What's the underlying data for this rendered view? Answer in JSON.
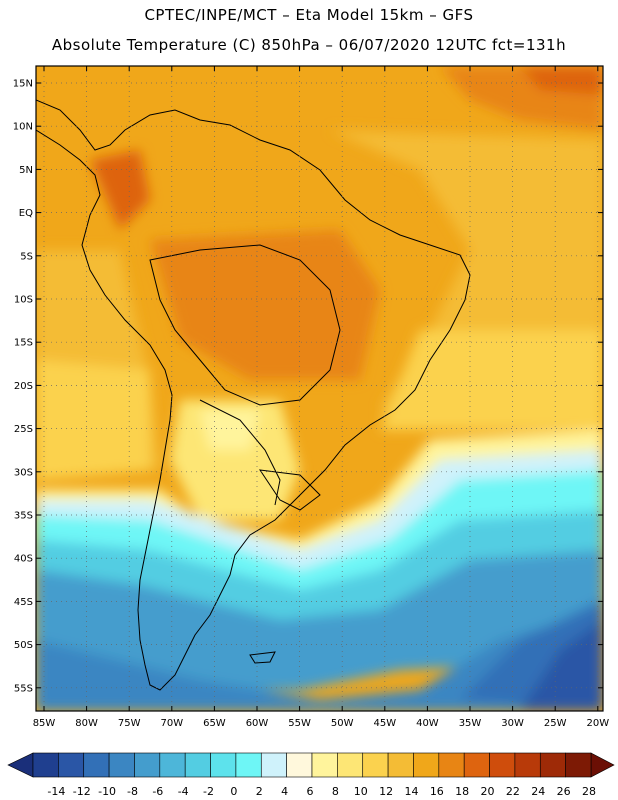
{
  "header": {
    "line1": "CPTEC/INPE/MCT –   Eta Model 15km – GFS",
    "line2": "Absolute Temperature (C) 850hPa – 06/07/2020 12UTC fct=131h"
  },
  "map": {
    "lat_labels": [
      "15N",
      "10N",
      "5N",
      "EQ",
      "5S",
      "10S",
      "15S",
      "20S",
      "25S",
      "30S",
      "35S",
      "40S",
      "45S",
      "50S",
      "55S"
    ],
    "lon_labels": [
      "85W",
      "80W",
      "75W",
      "70W",
      "65W",
      "60W",
      "55W",
      "50W",
      "45W",
      "40W",
      "35W",
      "30W",
      "25W",
      "20W"
    ]
  },
  "colorbar": {
    "colors": [
      "#1f3f8f",
      "#2a56a6",
      "#3270b7",
      "#3b86c2",
      "#449dcd",
      "#4db6d9",
      "#53cde2",
      "#5de2ec",
      "#6ef6f6",
      "#cff2fb",
      "#fff8dc",
      "#fff49c",
      "#fde675",
      "#fbd24e",
      "#f4bc35",
      "#f0a71a",
      "#e88514",
      "#de640f",
      "#cf4d0c",
      "#b83a09",
      "#9e2a07",
      "#7d1a05"
    ],
    "low_color": "#1a2f7a",
    "high_color": "#6b0f05",
    "labels": [
      "-14",
      "-12",
      "-10",
      "-8",
      "-6",
      "-4",
      "-2",
      "0",
      "2",
      "4",
      "6",
      "8",
      "10",
      "12",
      "14",
      "16",
      "18",
      "20",
      "22",
      "24",
      "26",
      "28"
    ]
  }
}
